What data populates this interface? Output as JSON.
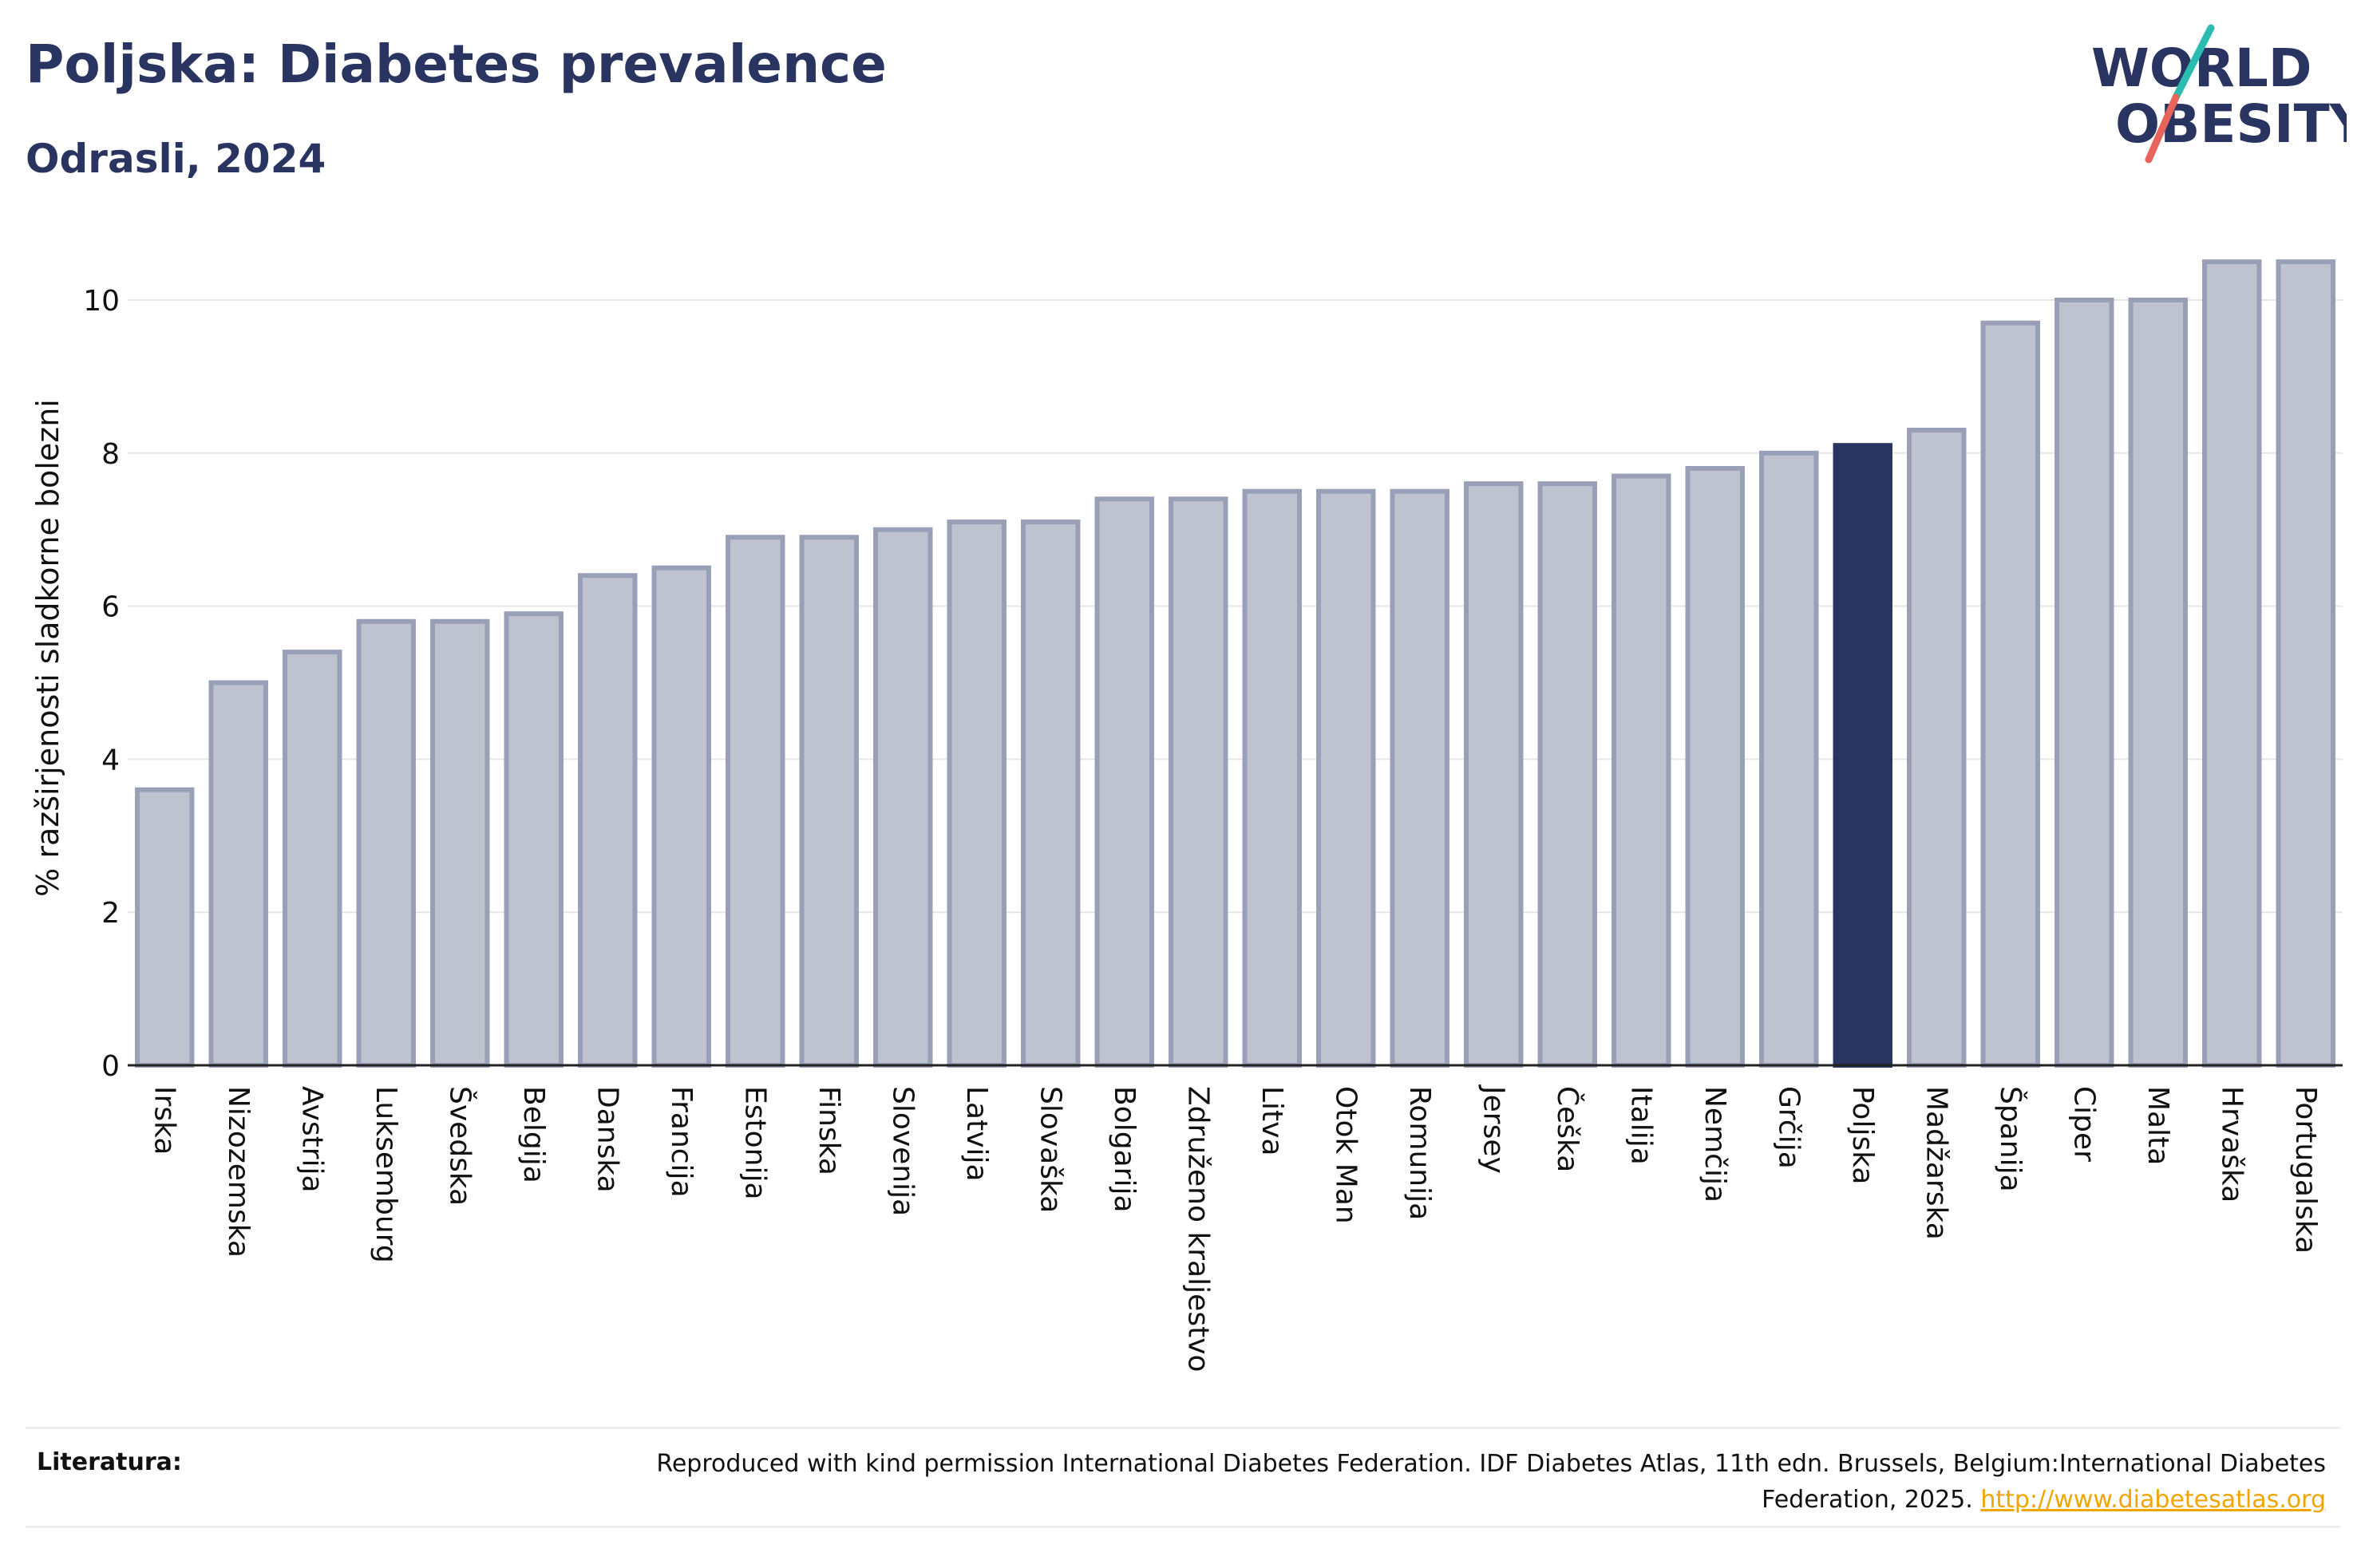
{
  "header": {
    "title": "Poljska: Diabetes prevalence",
    "subtitle": "Odrasli, 2024"
  },
  "logo": {
    "line1": "WORLD",
    "line2": "OBESITY",
    "colors": {
      "text": "#2a3460",
      "slash_teal": "#2bbcb0",
      "slash_red": "#e8645a"
    }
  },
  "colors": {
    "bar": "#bfc2cf",
    "bar_border": "#9a9fb8",
    "highlight": "#2a3460",
    "grid": "#e6e6e6",
    "axis": "#222222"
  },
  "chart_data": {
    "type": "bar",
    "ylabel": "% razširjenosti sladkorne bolezni",
    "ylim": [
      0,
      10.5
    ],
    "yticks": [
      0,
      2,
      4,
      6,
      8,
      10
    ],
    "grid": true,
    "highlight_category": "Poljska",
    "categories": [
      "Irska",
      "Nizozemska",
      "Avstrija",
      "Luksemburg",
      "Švedska",
      "Belgija",
      "Danska",
      "Francija",
      "Estonija",
      "Finska",
      "Slovenija",
      "Latvija",
      "Slovaška",
      "Bolgarija",
      "Združeno kraljestvo",
      "Litva",
      "Otok Man",
      "Romunija",
      "Jersey",
      "Češka",
      "Italija",
      "Nemčija",
      "Grčija",
      "Poljska",
      "Madžarska",
      "Španija",
      "Ciper",
      "Malta",
      "Hrvaška",
      "Portugalska"
    ],
    "values": [
      3.6,
      5.0,
      5.4,
      5.8,
      5.8,
      5.9,
      6.4,
      6.5,
      6.9,
      6.9,
      7.0,
      7.1,
      7.1,
      7.4,
      7.4,
      7.5,
      7.5,
      7.5,
      7.6,
      7.6,
      7.7,
      7.8,
      8.0,
      8.1,
      8.3,
      9.7,
      10.0,
      10.0,
      10.5,
      10.5
    ]
  },
  "footer": {
    "label": "Literatura:",
    "source_text": "Reproduced with kind permission International Diabetes Federation. IDF Diabetes Atlas, 11th edn. Brussels, Belgium:International Diabetes Federation, 2025.",
    "source_link": "http://www.diabetesatlas.org"
  }
}
